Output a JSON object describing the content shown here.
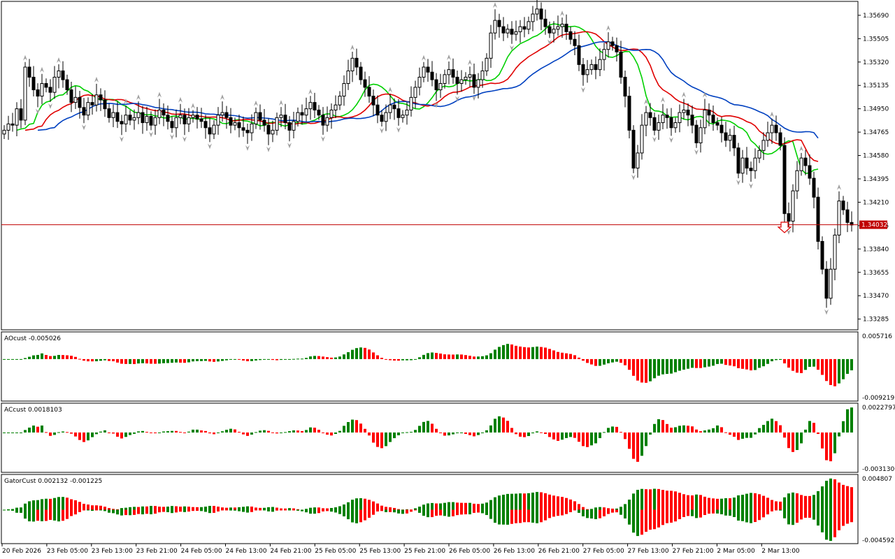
{
  "colors": {
    "frame": "#000000",
    "bull_body": "#ffffff",
    "bear_body": "#000000",
    "ma_fast": "#00d000",
    "ma_mid": "#e00000",
    "ma_slow": "#0040c0",
    "hist_up": "#008000",
    "hist_down": "#ff0000",
    "price_line": "#c00000",
    "fractal": "#a0a0a0",
    "arrow": "#e00000"
  },
  "chart_data": [
    {
      "type": "candlestick",
      "title": "",
      "current_price": "1.34032",
      "yaxis_labels": [
        "1.35690",
        "1.35505",
        "1.35320",
        "1.35135",
        "1.34950",
        "1.34765",
        "1.34580",
        "1.34395",
        "1.34210",
        "1.34025",
        "1.33840",
        "1.33655",
        "1.33470",
        "1.33285"
      ],
      "ylim": [
        1.332,
        1.358
      ],
      "xaxis_labels": [
        "20 Feb 2026",
        "23 Feb 05:00",
        "23 Feb 13:00",
        "23 Feb 21:00",
        "24 Feb 05:00",
        "24 Feb 13:00",
        "24 Feb 21:00",
        "25 Feb 05:00",
        "25 Feb 13:00",
        "25 Feb 21:00",
        "26 Feb 05:00",
        "26 Feb 13:00",
        "26 Feb 21:00",
        "27 Feb 05:00",
        "27 Feb 13:00",
        "27 Feb 21:00",
        "2 Mar 05:00",
        "2 Mar 13:00"
      ],
      "closes": [
        1.3478,
        1.3483,
        1.3482,
        1.3495,
        1.3486,
        1.3528,
        1.352,
        1.351,
        1.3505,
        1.3515,
        1.3512,
        1.3508,
        1.352,
        1.3525,
        1.3518,
        1.351,
        1.35,
        1.3504,
        1.3496,
        1.349,
        1.35,
        1.3498,
        1.3506,
        1.3502,
        1.3495,
        1.3488,
        1.3492,
        1.3485,
        1.3483,
        1.349,
        1.3486,
        1.3488,
        1.3492,
        1.3484,
        1.3489,
        1.3482,
        1.3488,
        1.3494,
        1.349,
        1.3485,
        1.348,
        1.3488,
        1.349,
        1.3483,
        1.3488,
        1.349,
        1.3487,
        1.3485,
        1.348,
        1.3475,
        1.3482,
        1.349,
        1.3492,
        1.3488,
        1.3482,
        1.3484,
        1.348,
        1.3478,
        1.3476,
        1.3483,
        1.3492,
        1.3486,
        1.3482,
        1.3475,
        1.3478,
        1.3488,
        1.349,
        1.3484,
        1.3478,
        1.3485,
        1.3492,
        1.349,
        1.3495,
        1.35,
        1.3494,
        1.349,
        1.3482,
        1.3488,
        1.3494,
        1.3498,
        1.3505,
        1.3515,
        1.3525,
        1.3535,
        1.3528,
        1.3518,
        1.3512,
        1.3505,
        1.3498,
        1.349,
        1.3485,
        1.3492,
        1.3498,
        1.3495,
        1.3488,
        1.349,
        1.3494,
        1.3504,
        1.3512,
        1.352,
        1.3528,
        1.3524,
        1.3518,
        1.351,
        1.3515,
        1.3522,
        1.3526,
        1.352,
        1.3515,
        1.3518,
        1.352,
        1.3522,
        1.3512,
        1.3518,
        1.3525,
        1.3535,
        1.3555,
        1.3565,
        1.356,
        1.3555,
        1.3558,
        1.3554,
        1.3556,
        1.356,
        1.3558,
        1.3564,
        1.357,
        1.3574,
        1.3566,
        1.356,
        1.3555,
        1.3558,
        1.356,
        1.3562,
        1.3556,
        1.355,
        1.3545,
        1.353,
        1.3522,
        1.3526,
        1.353,
        1.3526,
        1.3534,
        1.3542,
        1.3548,
        1.3545,
        1.354,
        1.352,
        1.3505,
        1.3478,
        1.3448,
        1.346,
        1.3482,
        1.3492,
        1.3488,
        1.3478,
        1.3484,
        1.349,
        1.3488,
        1.348,
        1.3484,
        1.3492,
        1.3494,
        1.349,
        1.3482,
        1.3468,
        1.348,
        1.3494,
        1.349,
        1.3484,
        1.3482,
        1.3476,
        1.347,
        1.3474,
        1.3464,
        1.3444,
        1.3456,
        1.3448,
        1.3446,
        1.3456,
        1.3462,
        1.347,
        1.3476,
        1.3482,
        1.3476,
        1.3466,
        1.3412,
        1.3406,
        1.343,
        1.3446,
        1.3456,
        1.345,
        1.344,
        1.3425,
        1.339,
        1.3368,
        1.3345,
        1.3368,
        1.3395,
        1.3422,
        1.3415,
        1.3405,
        1.3403
      ]
    },
    {
      "type": "bar",
      "title": "AOcust -0.005026",
      "yaxis_labels": [
        "0.005716",
        "-0.009219"
      ],
      "ylim": [
        -0.0102,
        0.0066
      ]
    },
    {
      "type": "bar",
      "title": "ACcust 0.0018103",
      "yaxis_labels": [
        "0.0022797",
        "-0.0031300"
      ],
      "ylim": [
        -0.0034,
        0.0025
      ]
    },
    {
      "type": "bar",
      "title": "GatorCust 0.002132 -0.001225",
      "yaxis_labels": [
        "0.004807",
        "-0.004592"
      ],
      "ylim": [
        -0.005,
        0.0052
      ]
    }
  ]
}
